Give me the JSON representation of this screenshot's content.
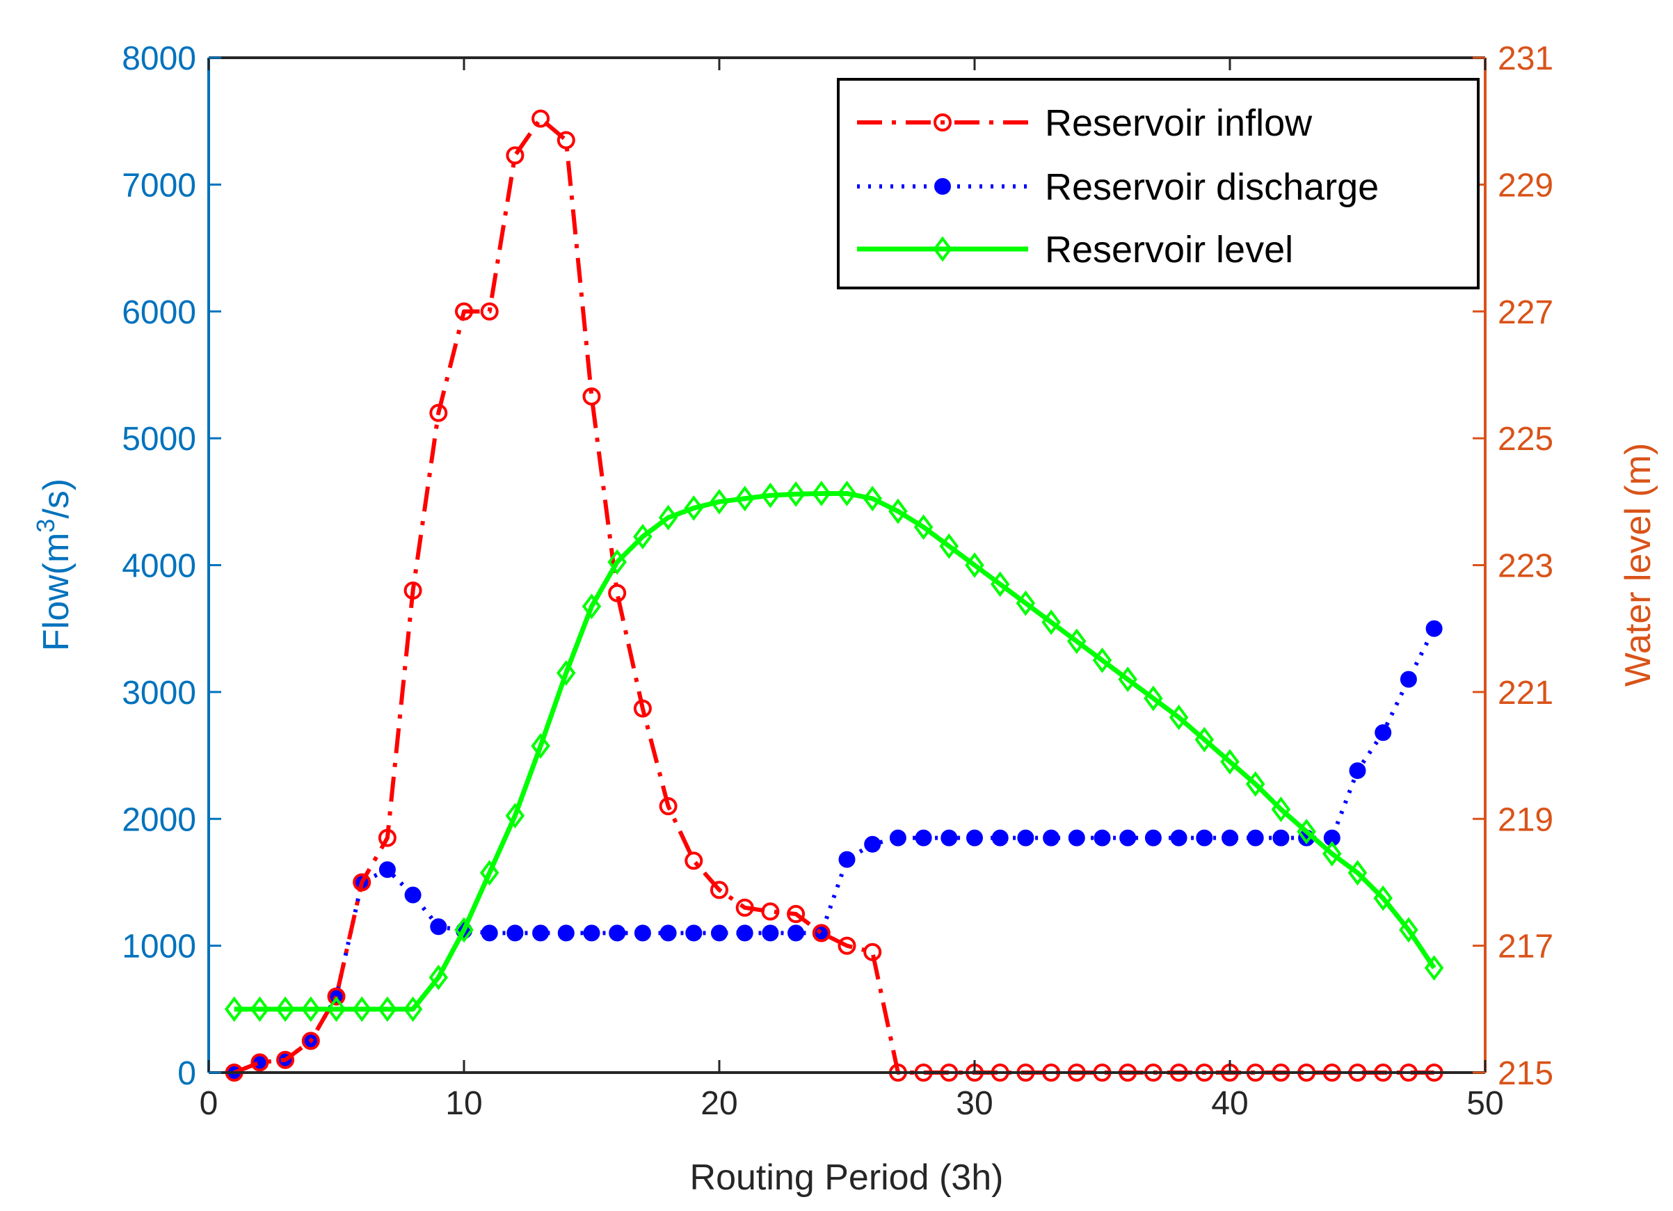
{
  "chart_data": {
    "type": "line",
    "xlabel": "Routing Period (3h)",
    "ylabel_left": "Flow(m³/s)",
    "ylabel_left_parts": {
      "pre": "Flow(m",
      "sup": "3",
      "post": "/s)"
    },
    "ylabel_right": "Water level (m)",
    "xlim": [
      0,
      50
    ],
    "ylim_left": [
      0,
      8000
    ],
    "ylim_right": [
      215,
      231
    ],
    "xticks": [
      0,
      10,
      20,
      30,
      40,
      50
    ],
    "yticks_left": [
      0,
      1000,
      2000,
      3000,
      4000,
      5000,
      6000,
      7000,
      8000
    ],
    "yticks_right": [
      215,
      217,
      219,
      221,
      223,
      225,
      227,
      229,
      231
    ],
    "legend_position": "top-right",
    "colors": {
      "left_axis": "#0072BD",
      "right_axis": "#D95319",
      "inflow": "#FF0000",
      "discharge": "#0000FF",
      "level": "#00FF00"
    },
    "series": [
      {
        "name": "Reservoir inflow",
        "axis": "left",
        "x": [
          1,
          2,
          3,
          4,
          5,
          6,
          7,
          8,
          9,
          10,
          11,
          12,
          13,
          14,
          15,
          16,
          17,
          18,
          19,
          20,
          21,
          22,
          23,
          24,
          25,
          26,
          27,
          28,
          29,
          30,
          31,
          32,
          33,
          34,
          35,
          36,
          37,
          38,
          39,
          40,
          41,
          42,
          43,
          44,
          45,
          46,
          47,
          48
        ],
        "y": [
          0,
          80,
          100,
          250,
          600,
          1500,
          1850,
          3800,
          5200,
          6000,
          6000,
          7230,
          7520,
          7350,
          5330,
          3780,
          2870,
          2100,
          1670,
          1440,
          1300,
          1270,
          1250,
          1100,
          1000,
          950,
          0,
          0,
          0,
          0,
          0,
          0,
          0,
          0,
          0,
          0,
          0,
          0,
          0,
          0,
          0,
          0,
          0,
          0,
          0,
          0,
          0,
          0
        ]
      },
      {
        "name": "Reservoir discharge",
        "axis": "left",
        "x": [
          1,
          2,
          3,
          4,
          5,
          6,
          7,
          8,
          9,
          10,
          11,
          12,
          13,
          14,
          15,
          16,
          17,
          18,
          19,
          20,
          21,
          22,
          23,
          24,
          25,
          26,
          27,
          28,
          29,
          30,
          31,
          32,
          33,
          34,
          35,
          36,
          37,
          38,
          39,
          40,
          41,
          42,
          43,
          44,
          45,
          46,
          47,
          48
        ],
        "y": [
          0,
          80,
          100,
          250,
          600,
          1500,
          1600,
          1400,
          1150,
          1120,
          1100,
          1100,
          1100,
          1100,
          1100,
          1100,
          1100,
          1100,
          1100,
          1100,
          1100,
          1100,
          1100,
          1100,
          1680,
          1800,
          1850,
          1850,
          1850,
          1850,
          1850,
          1850,
          1850,
          1850,
          1850,
          1850,
          1850,
          1850,
          1850,
          1850,
          1850,
          1850,
          1850,
          1850,
          2380,
          2680,
          3100,
          3500
        ]
      },
      {
        "name": "Reservoir level",
        "axis": "right",
        "x": [
          1,
          2,
          3,
          4,
          5,
          6,
          7,
          8,
          9,
          10,
          11,
          12,
          13,
          14,
          15,
          16,
          17,
          18,
          19,
          20,
          21,
          22,
          23,
          24,
          25,
          26,
          27,
          28,
          29,
          30,
          31,
          32,
          33,
          34,
          35,
          36,
          37,
          38,
          39,
          40,
          41,
          42,
          43,
          44,
          45,
          46,
          47,
          48
        ],
        "y": [
          216,
          216,
          216,
          216,
          216,
          216,
          216,
          216,
          216.5,
          217.25,
          218.15,
          219.05,
          220.15,
          221.3,
          222.35,
          223.05,
          223.45,
          223.75,
          223.9,
          224,
          224.05,
          224.1,
          224.12,
          224.13,
          224.13,
          224.05,
          223.85,
          223.6,
          223.3,
          223,
          222.7,
          222.4,
          222.1,
          221.8,
          221.5,
          221.2,
          220.9,
          220.6,
          220.25,
          219.9,
          219.55,
          219.15,
          218.8,
          218.45,
          218.15,
          217.75,
          217.25,
          216.65
        ]
      }
    ]
  }
}
